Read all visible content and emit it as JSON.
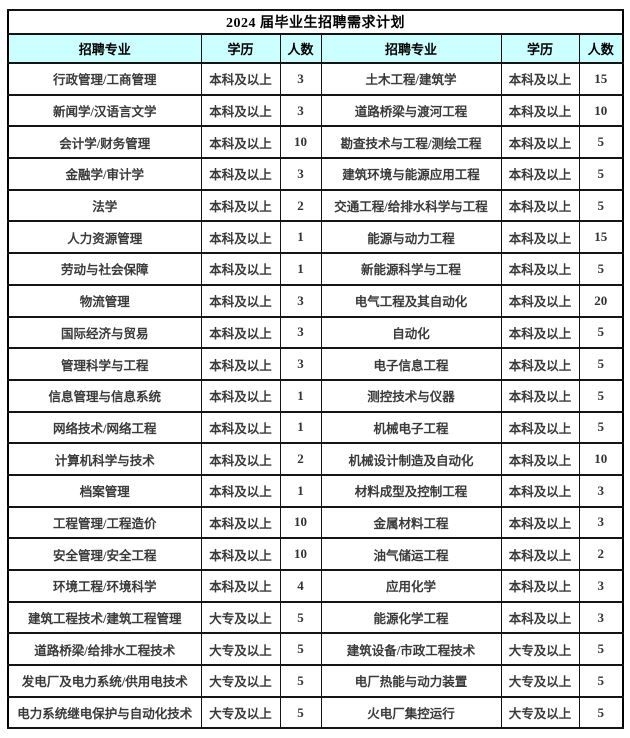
{
  "table": {
    "title": "2024 届毕业生招聘需求计划",
    "headers": [
      "招聘专业",
      "学历",
      "人数",
      "招聘专业",
      "学历",
      "人数"
    ],
    "rows": [
      {
        "left": {
          "major": "行政管理/工商管理",
          "degree": "本科及以上",
          "count": "3"
        },
        "right": {
          "major": "土木工程/建筑学",
          "degree": "本科及以上",
          "count": "15"
        }
      },
      {
        "left": {
          "major": "新闻学/汉语言文学",
          "degree": "本科及以上",
          "count": "3"
        },
        "right": {
          "major": "道路桥梁与渡河工程",
          "degree": "本科及以上",
          "count": "10"
        }
      },
      {
        "left": {
          "major": "会计学/财务管理",
          "degree": "本科及以上",
          "count": "10"
        },
        "right": {
          "major": "勘查技术与工程/测绘工程",
          "degree": "本科及以上",
          "count": "5"
        }
      },
      {
        "left": {
          "major": "金融学/审计学",
          "degree": "本科及以上",
          "count": "3"
        },
        "right": {
          "major": "建筑环境与能源应用工程",
          "degree": "本科及以上",
          "count": "5"
        }
      },
      {
        "left": {
          "major": "法学",
          "degree": "本科及以上",
          "count": "2"
        },
        "right": {
          "major": "交通工程/给排水科学与工程",
          "degree": "本科及以上",
          "count": "5"
        }
      },
      {
        "left": {
          "major": "人力资源管理",
          "degree": "本科及以上",
          "count": "1"
        },
        "right": {
          "major": "能源与动力工程",
          "degree": "本科及以上",
          "count": "15"
        }
      },
      {
        "left": {
          "major": "劳动与社会保障",
          "degree": "本科及以上",
          "count": "1"
        },
        "right": {
          "major": "新能源科学与工程",
          "degree": "本科及以上",
          "count": "5"
        }
      },
      {
        "left": {
          "major": "物流管理",
          "degree": "本科及以上",
          "count": "3"
        },
        "right": {
          "major": "电气工程及其自动化",
          "degree": "本科及以上",
          "count": "20"
        }
      },
      {
        "left": {
          "major": "国际经济与贸易",
          "degree": "本科及以上",
          "count": "3"
        },
        "right": {
          "major": "自动化",
          "degree": "本科及以上",
          "count": "5"
        }
      },
      {
        "left": {
          "major": "管理科学与工程",
          "degree": "本科及以上",
          "count": "3"
        },
        "right": {
          "major": "电子信息工程",
          "degree": "本科及以上",
          "count": "5"
        }
      },
      {
        "left": {
          "major": "信息管理与信息系统",
          "degree": "本科及以上",
          "count": "1"
        },
        "right": {
          "major": "测控技术与仪器",
          "degree": "本科及以上",
          "count": "5"
        }
      },
      {
        "left": {
          "major": "网络技术/网络工程",
          "degree": "本科及以上",
          "count": "1"
        },
        "right": {
          "major": "机械电子工程",
          "degree": "本科及以上",
          "count": "5"
        }
      },
      {
        "left": {
          "major": "计算机科学与技术",
          "degree": "本科及以上",
          "count": "2"
        },
        "right": {
          "major": "机械设计制造及自动化",
          "degree": "本科及以上",
          "count": "10"
        }
      },
      {
        "left": {
          "major": "档案管理",
          "degree": "本科及以上",
          "count": "1"
        },
        "right": {
          "major": "材料成型及控制工程",
          "degree": "本科及以上",
          "count": "3"
        }
      },
      {
        "left": {
          "major": "工程管理/工程造价",
          "degree": "本科及以上",
          "count": "10"
        },
        "right": {
          "major": "金属材料工程",
          "degree": "本科及以上",
          "count": "3"
        }
      },
      {
        "left": {
          "major": "安全管理/安全工程",
          "degree": "本科及以上",
          "count": "10"
        },
        "right": {
          "major": "油气储运工程",
          "degree": "本科及以上",
          "count": "2"
        }
      },
      {
        "left": {
          "major": "环境工程/环境科学",
          "degree": "本科及以上",
          "count": "4"
        },
        "right": {
          "major": "应用化学",
          "degree": "本科及以上",
          "count": "3"
        }
      },
      {
        "left": {
          "major": "建筑工程技术/建筑工程管理",
          "degree": "大专及以上",
          "count": "5"
        },
        "right": {
          "major": "能源化学工程",
          "degree": "本科及以上",
          "count": "3"
        }
      },
      {
        "left": {
          "major": "道路桥梁/给排水工程技术",
          "degree": "大专及以上",
          "count": "5"
        },
        "right": {
          "major": "建筑设备/市政工程技术",
          "degree": "大专及以上",
          "count": "5"
        }
      },
      {
        "left": {
          "major": "发电厂及电力系统/供用电技术",
          "degree": "大专及以上",
          "count": "5"
        },
        "right": {
          "major": "电厂热能与动力装置",
          "degree": "大专及以上",
          "count": "5"
        }
      },
      {
        "left": {
          "major": "电力系统继电保护与自动化技术",
          "degree": "大专及以上",
          "count": "5"
        },
        "right": {
          "major": "火电厂集控运行",
          "degree": "大专及以上",
          "count": "5"
        }
      }
    ]
  },
  "colors": {
    "header_bg": "#ccffff",
    "border": "#141414",
    "body_text": "#3a3a3a",
    "title_text": "#000000"
  }
}
